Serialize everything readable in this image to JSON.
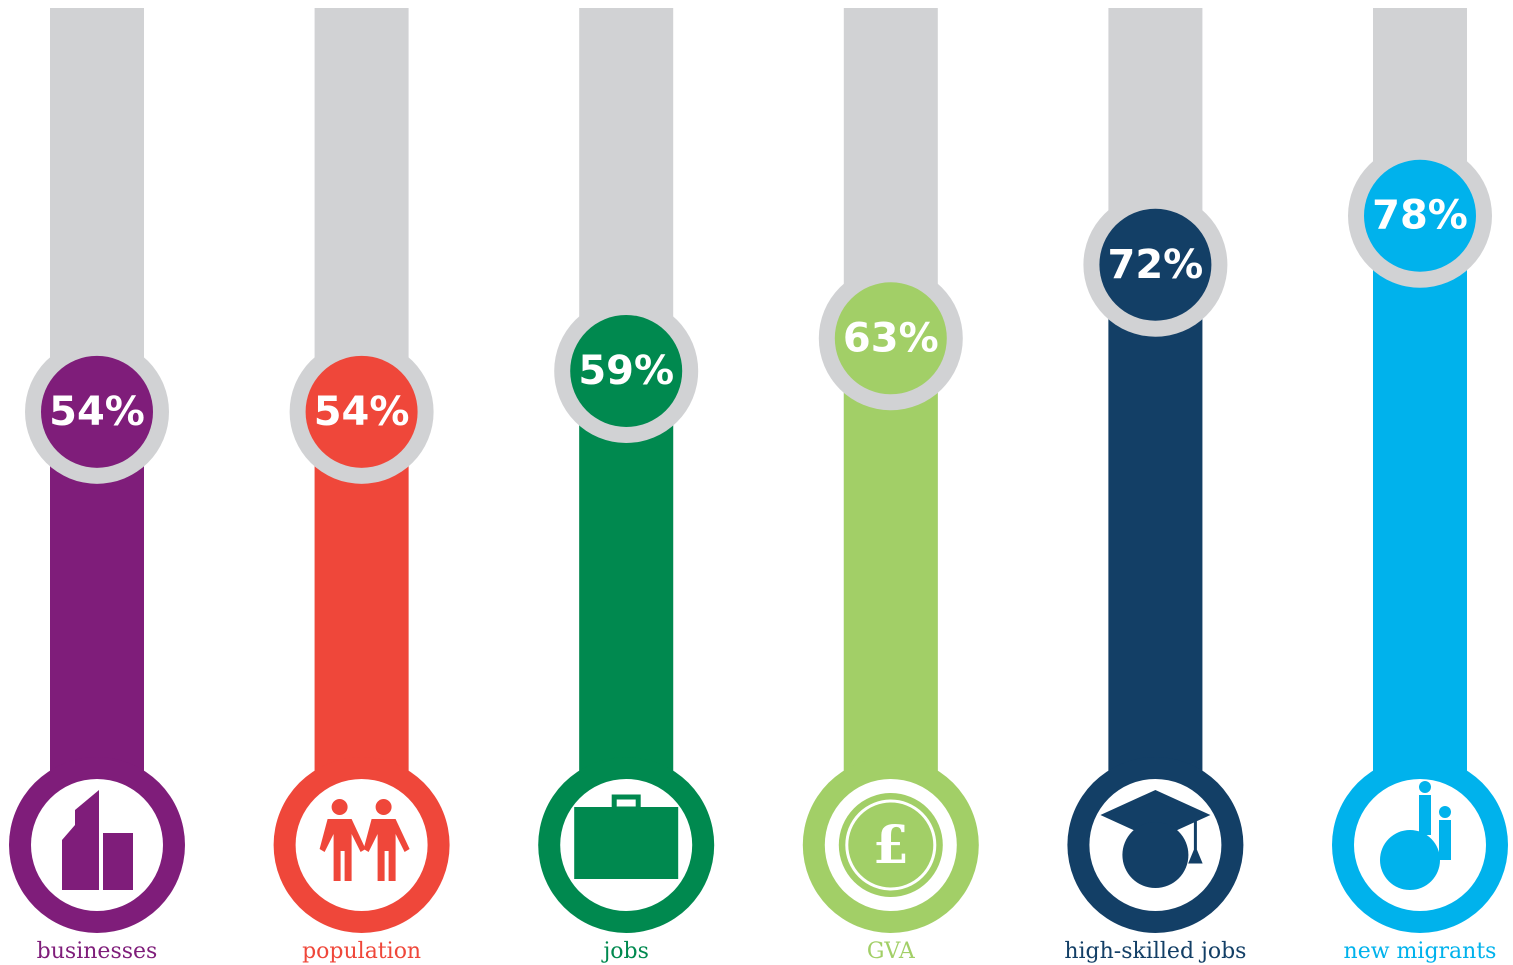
{
  "chart_data": {
    "type": "bar",
    "categories": [
      "businesses",
      "population",
      "jobs",
      "GVA",
      "high-skilled jobs",
      "new migrants"
    ],
    "values": [
      54,
      54,
      59,
      63,
      72,
      78
    ],
    "value_labels": [
      "54%",
      "54%",
      "59%",
      "63%",
      "72%",
      "78%"
    ],
    "colors": [
      "#7f1d7a",
      "#ef473a",
      "#00894f",
      "#a2cf67",
      "#133f66",
      "#00b2ec"
    ],
    "track_color": "#d1d2d4",
    "ylim": [
      0,
      100
    ]
  }
}
